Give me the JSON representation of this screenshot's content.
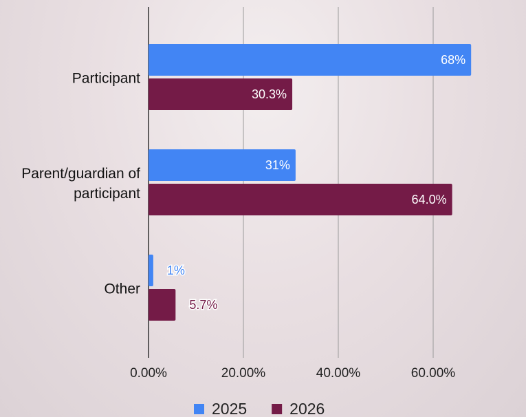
{
  "chart_data": {
    "type": "bar",
    "orientation": "horizontal",
    "categories": [
      "Participant",
      "Parent/guardian of participant",
      "Other"
    ],
    "series": [
      {
        "name": "2025",
        "color": "#4285f4",
        "values": [
          68,
          31,
          1
        ],
        "value_labels": [
          "68%",
          "31%",
          "1%"
        ]
      },
      {
        "name": "2026",
        "color": "#741b47",
        "values": [
          30.3,
          64.0,
          5.7
        ],
        "value_labels": [
          "30.3%",
          "64.0%",
          "5.7%"
        ]
      }
    ],
    "xlim": [
      0,
      70
    ],
    "xticks": [
      {
        "value": 0,
        "label": "0.00%"
      },
      {
        "value": 20,
        "label": "20.00%"
      },
      {
        "value": 40,
        "label": "40.00%"
      },
      {
        "value": 60,
        "label": "60.00%"
      }
    ],
    "grid": true,
    "legend": "bottom"
  }
}
